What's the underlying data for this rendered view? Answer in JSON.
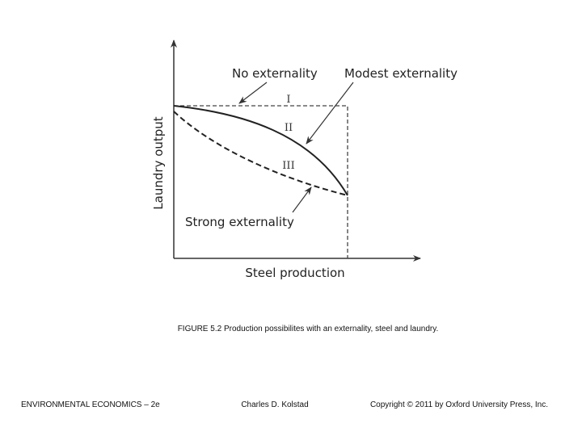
{
  "diagram": {
    "axes": {
      "y_label": "Laundry output",
      "x_label": "Steel production"
    },
    "curves": [
      {
        "label": "No externality",
        "region": "I"
      },
      {
        "label": "Modest externality",
        "region": "II"
      },
      {
        "label": "Strong externality",
        "region": "III"
      }
    ],
    "caption": "FIGURE 5.2 Production possibilites with an externality, steel and laundry."
  },
  "footer": {
    "left": "ENVIRONMENTAL ECONOMICS – 2e",
    "center": "Charles D. Kolstad",
    "right": "Copyright © 2011 by Oxford University Press, Inc."
  }
}
